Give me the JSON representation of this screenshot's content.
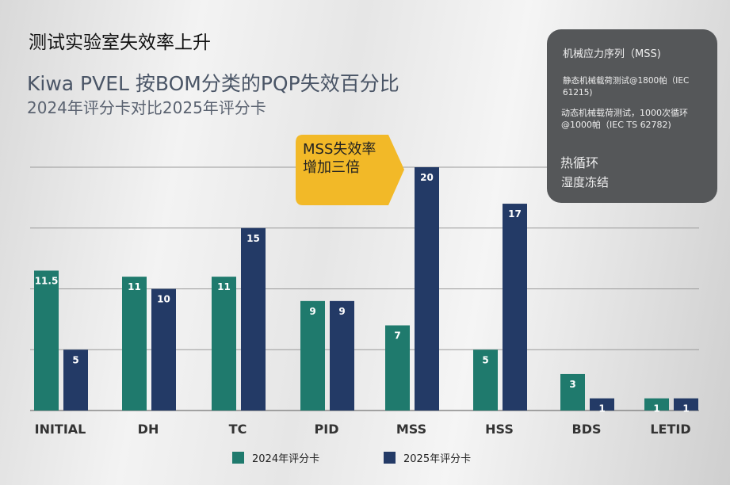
{
  "header": {
    "title": "测试实验室失效率上升",
    "subtitle": "Kiwa PVEL 按BOM分类的PQP失效百分比",
    "subsubtitle": "2024年评分卡对比2025年评分卡"
  },
  "callout": {
    "line1": "MSS失效率",
    "line2": "增加三倍",
    "color": "#f2b928"
  },
  "panel": {
    "heading": "机械应力序列（MSS)",
    "item1": "静态机械载荷测试@1800帕（IEC 61215)",
    "item2": "动态机械载荷测试，1000次循环@1000帕（IEC TS 62782)",
    "item3": "热循环",
    "item4": "湿度冻结"
  },
  "chart_data": {
    "type": "bar",
    "categories": [
      "INITIAL",
      "DH",
      "TC",
      "PID",
      "MSS",
      "HSS",
      "BDS",
      "LETID"
    ],
    "series": [
      {
        "name": "2024年评分卡",
        "color": "#1f7a6d",
        "values": [
          11.5,
          11,
          11,
          9,
          7,
          5,
          3,
          1
        ]
      },
      {
        "name": "2025年评分卡",
        "color": "#233a66",
        "values": [
          5,
          10,
          15,
          9,
          20,
          17,
          1,
          1
        ]
      }
    ],
    "ylim": [
      0,
      20
    ],
    "grid": true,
    "gridStep": 5,
    "legend": "bottom"
  }
}
